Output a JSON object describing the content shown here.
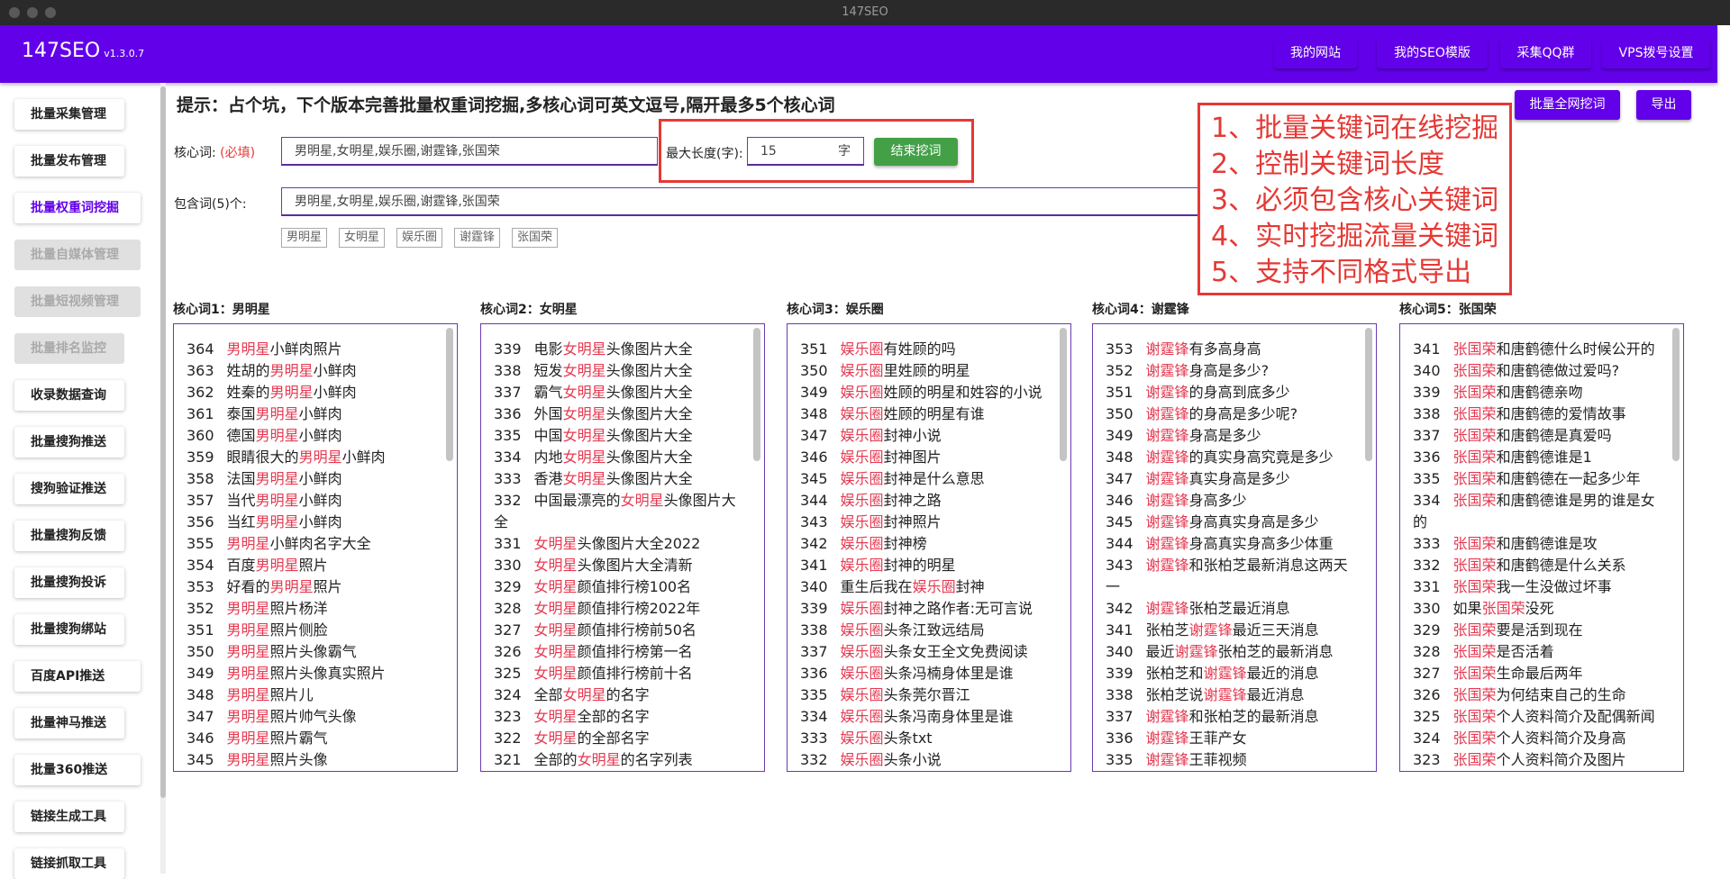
{
  "window": {
    "title": "147SEO"
  },
  "header": {
    "brand": "147SEO",
    "version": "v1.3.0.7",
    "buttons": [
      "我的网站",
      "我的SEO模版",
      "采集QQ群",
      "VPS拨号设置"
    ]
  },
  "sidebar": {
    "items": [
      {
        "label": "批量采集管理",
        "state": "normal"
      },
      {
        "label": "批量发布管理",
        "state": "normal"
      },
      {
        "label": "批量权重词挖掘",
        "state": "active"
      },
      {
        "label": "批量自媒体管理",
        "state": "disabled"
      },
      {
        "label": "批量短视频管理",
        "state": "disabled"
      },
      {
        "label": "批量排名监控",
        "state": "disabled"
      },
      {
        "label": "收录数据查询",
        "state": "normal"
      },
      {
        "label": "批量搜狗推送",
        "state": "normal"
      },
      {
        "label": "搜狗验证推送",
        "state": "normal"
      },
      {
        "label": "批量搜狗反馈",
        "state": "normal"
      },
      {
        "label": "批量搜狗投诉",
        "state": "normal"
      },
      {
        "label": "批量搜狗绑站",
        "state": "normal"
      },
      {
        "label": "百度API推送",
        "state": "normal"
      },
      {
        "label": "批量神马推送",
        "state": "normal"
      },
      {
        "label": "批量360推送",
        "state": "normal"
      },
      {
        "label": "链接生成工具",
        "state": "normal"
      },
      {
        "label": "链接抓取工具",
        "state": "normal"
      }
    ]
  },
  "main": {
    "hint": "提示：占个坑，下个版本完善批量权重词挖掘,多核心词可英文逗号,隔开最多5个核心词",
    "core_label": "核心词:",
    "core_required": "(必填)",
    "core_value": "男明星,女明星,娱乐圈,谢霆锋,张国荣",
    "max_len_label": "最大长度(字):",
    "max_len_value": "15",
    "max_len_unit": "字",
    "stop_button": "结束挖词",
    "include_label": "包含词(5)个:",
    "include_value": "男明星,女明星,娱乐圈,谢霆锋,张国荣",
    "tags": [
      "男明星",
      "女明星",
      "娱乐圈",
      "谢霆锋",
      "张国荣"
    ],
    "batch_button": "批量全网挖词",
    "export_button": "导出"
  },
  "annotation": [
    "1、批量关键词在线挖掘",
    "2、控制关键词长度",
    "3、必须包含核心关键词",
    "4、实时挖掘流量关键词",
    "5、支持不同格式导出"
  ],
  "colors": {
    "brand": "#6200ea",
    "keyword": "#e53950",
    "annotation": "#e53935",
    "stop": "#43a047"
  },
  "columns": [
    {
      "title": "核心词1：男明星",
      "keyword": "男明星",
      "rows": [
        [
          "364",
          "男明星小鲜肉照片"
        ],
        [
          "363",
          "姓胡的男明星小鲜肉"
        ],
        [
          "362",
          "姓秦的男明星小鲜肉"
        ],
        [
          "361",
          "泰国男明星小鲜肉"
        ],
        [
          "360",
          "德国男明星小鲜肉"
        ],
        [
          "359",
          "眼睛很大的男明星小鲜肉"
        ],
        [
          "358",
          "法国男明星小鲜肉"
        ],
        [
          "357",
          "当代男明星小鲜肉"
        ],
        [
          "356",
          "当红男明星小鲜肉"
        ],
        [
          "355",
          "男明星小鲜肉名字大全"
        ],
        [
          "354",
          "百度男明星照片"
        ],
        [
          "353",
          "好看的男明星照片"
        ],
        [
          "352",
          "男明星照片杨洋"
        ],
        [
          "351",
          "男明星照片侧脸"
        ],
        [
          "350",
          "男明星照片头像霸气"
        ],
        [
          "349",
          "男明星照片头像真实照片"
        ],
        [
          "348",
          "男明星照片儿"
        ],
        [
          "347",
          "男明星照片帅气头像"
        ],
        [
          "346",
          "男明星照片霸气"
        ],
        [
          "345",
          "男明星照片头像"
        ]
      ]
    },
    {
      "title": "核心词2：女明星",
      "keyword": "女明星",
      "rows": [
        [
          "339",
          "电影女明星头像图片大全"
        ],
        [
          "338",
          "短发女明星头像图片大全"
        ],
        [
          "337",
          "霸气女明星头像图片大全"
        ],
        [
          "336",
          "外国女明星头像图片大全"
        ],
        [
          "335",
          "中国女明星头像图片大全"
        ],
        [
          "334",
          "内地女明星头像图片大全"
        ],
        [
          "333",
          "香港女明星头像图片大全"
        ],
        [
          "332",
          "中国最漂亮的女明星头像图片大全"
        ],
        [
          "331",
          "女明星头像图片大全2022"
        ],
        [
          "330",
          "女明星头像图片大全清新"
        ],
        [
          "329",
          "女明星颜值排行榜100名"
        ],
        [
          "328",
          "女明星颜值排行榜2022年"
        ],
        [
          "327",
          "女明星颜值排行榜前50名"
        ],
        [
          "326",
          "女明星颜值排行榜第一名"
        ],
        [
          "325",
          "女明星颜值排行榜前十名"
        ],
        [
          "324",
          "全部女明星的名字"
        ],
        [
          "323",
          "女明星全部的名字"
        ],
        [
          "322",
          "女明星的全部名字"
        ],
        [
          "321",
          "全部的女明星的名字列表"
        ]
      ]
    },
    {
      "title": "核心词3：娱乐圈",
      "keyword": "娱乐圈",
      "rows": [
        [
          "351",
          "娱乐圈有姓顾的吗"
        ],
        [
          "350",
          "娱乐圈里姓顾的明星"
        ],
        [
          "349",
          "娱乐圈姓顾的明星和姓容的小说"
        ],
        [
          "348",
          "娱乐圈姓顾的明星有谁"
        ],
        [
          "347",
          "娱乐圈封神小说"
        ],
        [
          "346",
          "娱乐圈封神图片"
        ],
        [
          "345",
          "娱乐圈封神是什么意思"
        ],
        [
          "344",
          "娱乐圈封神之路"
        ],
        [
          "343",
          "娱乐圈封神照片"
        ],
        [
          "342",
          "娱乐圈封神榜"
        ],
        [
          "341",
          "娱乐圈封神的明星"
        ],
        [
          "340",
          "重生后我在娱乐圈封神"
        ],
        [
          "339",
          "娱乐圈封神之路作者:无可言说"
        ],
        [
          "338",
          "娱乐圈头条江致远结局"
        ],
        [
          "337",
          "娱乐圈头条女王全文免费阅读"
        ],
        [
          "336",
          "娱乐圈头条冯楠身体里是谁"
        ],
        [
          "335",
          "娱乐圈头条莞尔晋江"
        ],
        [
          "334",
          "娱乐圈头条冯南身体里是谁"
        ],
        [
          "333",
          "娱乐圈头条txt"
        ],
        [
          "332",
          "娱乐圈头条小说"
        ]
      ]
    },
    {
      "title": "核心词4：谢霆锋",
      "keyword": "谢霆锋",
      "rows": [
        [
          "353",
          "谢霆锋有多高身高"
        ],
        [
          "352",
          "谢霆锋身高是多少?"
        ],
        [
          "351",
          "谢霆锋的身高到底多少"
        ],
        [
          "350",
          "谢霆锋的身高是多少呢?"
        ],
        [
          "349",
          "谢霆锋身高是多少"
        ],
        [
          "348",
          "谢霆锋的真实身高究竟是多少"
        ],
        [
          "347",
          "谢霆锋真实身高是多少"
        ],
        [
          "346",
          "谢霆锋身高多少"
        ],
        [
          "345",
          "谢霆锋身高真实身高是多少"
        ],
        [
          "344",
          "谢霆锋身高真实身高多少体重"
        ],
        [
          "343",
          "谢霆锋和张柏芝最新消息这两天一"
        ],
        [
          "342",
          "谢霆锋张柏芝最近消息"
        ],
        [
          "341",
          "张柏芝谢霆锋最近三天消息"
        ],
        [
          "340",
          "最近谢霆锋张柏芝的最新消息"
        ],
        [
          "339",
          "张柏芝和谢霆锋最近的消息"
        ],
        [
          "338",
          "张柏芝说谢霆锋最近消息"
        ],
        [
          "337",
          "谢霆锋和张柏芝的最新消息"
        ],
        [
          "336",
          "谢霆锋王菲产女"
        ],
        [
          "335",
          "谢霆锋王菲视频"
        ]
      ]
    },
    {
      "title": "核心词5：张国荣",
      "keyword": "张国荣",
      "rows": [
        [
          "341",
          "张国荣和唐鹤德什么时候公开的"
        ],
        [
          "340",
          "张国荣和唐鹤德做过爱吗?"
        ],
        [
          "339",
          "张国荣和唐鹤德亲吻"
        ],
        [
          "338",
          "张国荣和唐鹤德的爱情故事"
        ],
        [
          "337",
          "张国荣和唐鹤德是真爱吗"
        ],
        [
          "336",
          "张国荣和唐鹤德谁是1"
        ],
        [
          "335",
          "张国荣和唐鹤德在一起多少年"
        ],
        [
          "334",
          "张国荣和唐鹤德谁是男的谁是女的"
        ],
        [
          "333",
          "张国荣和唐鹤德谁是攻"
        ],
        [
          "332",
          "张国荣和唐鹤德是什么关系"
        ],
        [
          "331",
          "张国荣我一生没做过坏事"
        ],
        [
          "330",
          "如果张国荣没死"
        ],
        [
          "329",
          "张国荣要是活到现在"
        ],
        [
          "328",
          "张国荣是否活着"
        ],
        [
          "327",
          "张国荣生命最后两年"
        ],
        [
          "326",
          "张国荣为何结束自己的生命"
        ],
        [
          "325",
          "张国荣个人资料简介及配偶新闻"
        ],
        [
          "324",
          "张国荣个人资料简介及身高"
        ],
        [
          "323",
          "张国荣个人资料简介及图片"
        ]
      ]
    }
  ]
}
